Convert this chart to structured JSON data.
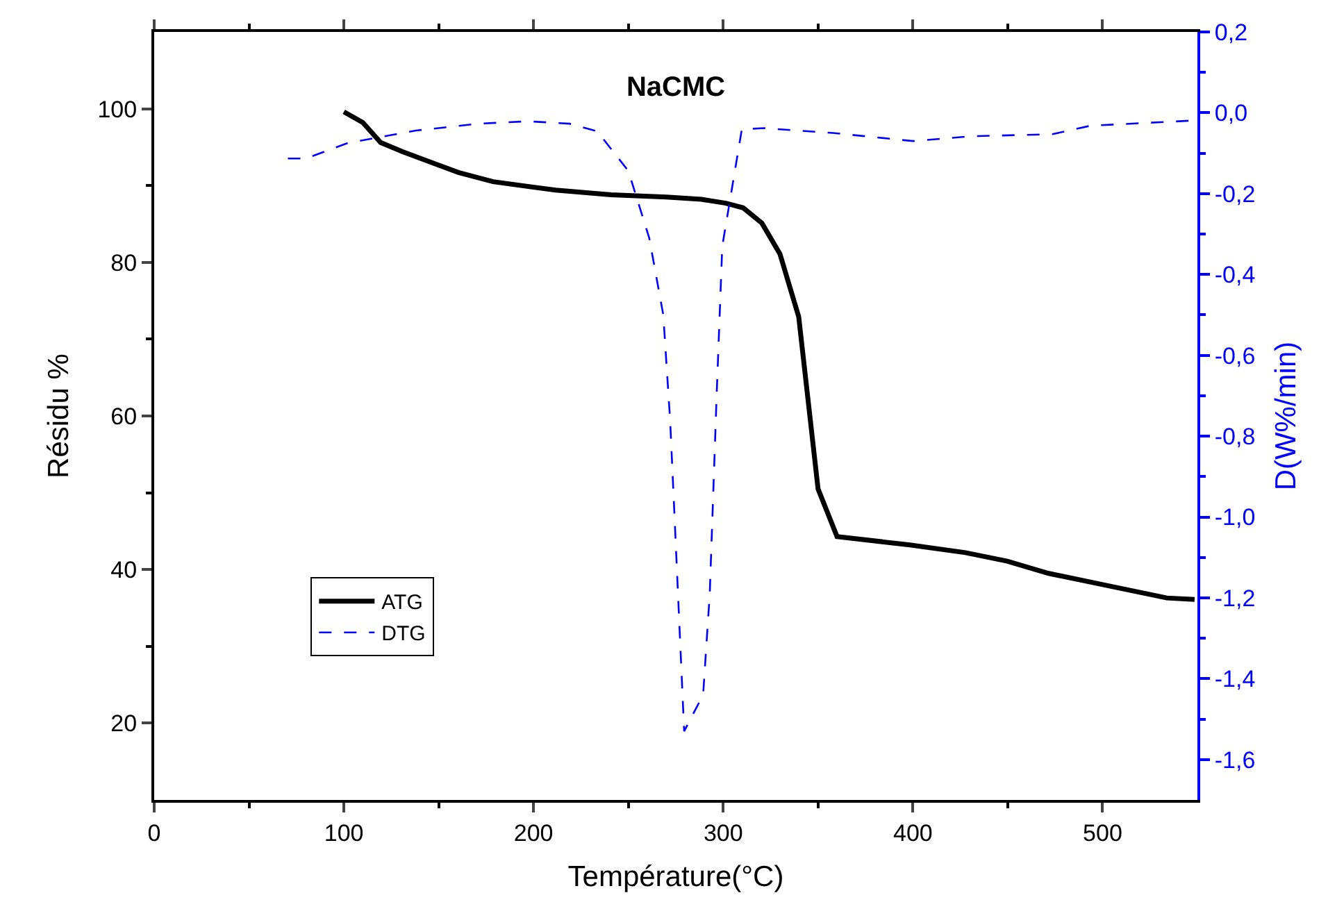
{
  "chart_data": {
    "type": "line",
    "title": "NaCMC",
    "xlabel": "Température(°C)",
    "ylabel": "Résidu %",
    "y2label": "D(W%/min)",
    "xlim": [
      0,
      550
    ],
    "xticks": [
      0,
      100,
      200,
      300,
      400,
      500
    ],
    "ylim": [
      10,
      110
    ],
    "yticks": [
      20,
      40,
      60,
      80,
      100
    ],
    "y2lim": [
      -1.7,
      0.2
    ],
    "y2ticks": [
      {
        "value": 0.2,
        "label": "0,2"
      },
      {
        "value": 0,
        "label": "0,0"
      },
      {
        "value": -0.2,
        "label": "-0,2"
      },
      {
        "value": -0.4,
        "label": "-0,4"
      },
      {
        "value": -0.6,
        "label": "-0,6"
      },
      {
        "value": -0.8,
        "label": "-0,8"
      },
      {
        "value": -1.0,
        "label": "-1,0"
      },
      {
        "value": -1.2,
        "label": "-1,2"
      },
      {
        "value": -1.4,
        "label": "-1,4"
      },
      {
        "value": -1.6,
        "label": "-1,6"
      }
    ],
    "grid": false,
    "legend": "left",
    "marker": "none",
    "series": [
      {
        "name": "ATG",
        "color": "#000000",
        "line_style": "solid",
        "x": [
          100,
          110,
          119.4,
          131,
          149.4,
          160.4,
          178.7,
          211.6,
          240.9,
          270,
          288.5,
          301.4,
          310.5,
          320.4,
          329.9,
          339.8,
          350,
          360,
          398.4,
          427.7,
          449.7,
          471.6,
          500.9,
          533.9,
          548.5
        ],
        "values": [
          99.6,
          98.2,
          95.6,
          94.4,
          92.7,
          91.7,
          90.5,
          89.4,
          88.8,
          88.5,
          88.2,
          87.7,
          87.1,
          85.1,
          81.1,
          72.9,
          50.5,
          44.3,
          43.2,
          42.2,
          41.1,
          39.5,
          38.0,
          36.3,
          36.1
        ]
      },
      {
        "name": "DTG",
        "color": "#0000ff",
        "line_style": "dashed",
        "axis": "y2",
        "x": [
          70.5,
          80,
          102,
          138,
          171,
          197,
          219,
          233.6,
          250,
          261,
          268.4,
          272,
          274,
          279.4,
          289.4,
          292.9,
          296.6,
          299.5,
          309.8,
          321.5,
          358,
          400,
          431,
          473.5,
          493.6,
          548.5
        ],
        "values": [
          -0.113,
          -0.113,
          -0.075,
          -0.044,
          -0.027,
          -0.021,
          -0.027,
          -0.046,
          -0.144,
          -0.31,
          -0.5,
          -0.76,
          -0.964,
          -1.53,
          -1.44,
          -1.19,
          -0.69,
          -0.33,
          -0.041,
          -0.038,
          -0.05,
          -0.07,
          -0.058,
          -0.053,
          -0.032,
          -0.019
        ]
      }
    ]
  }
}
